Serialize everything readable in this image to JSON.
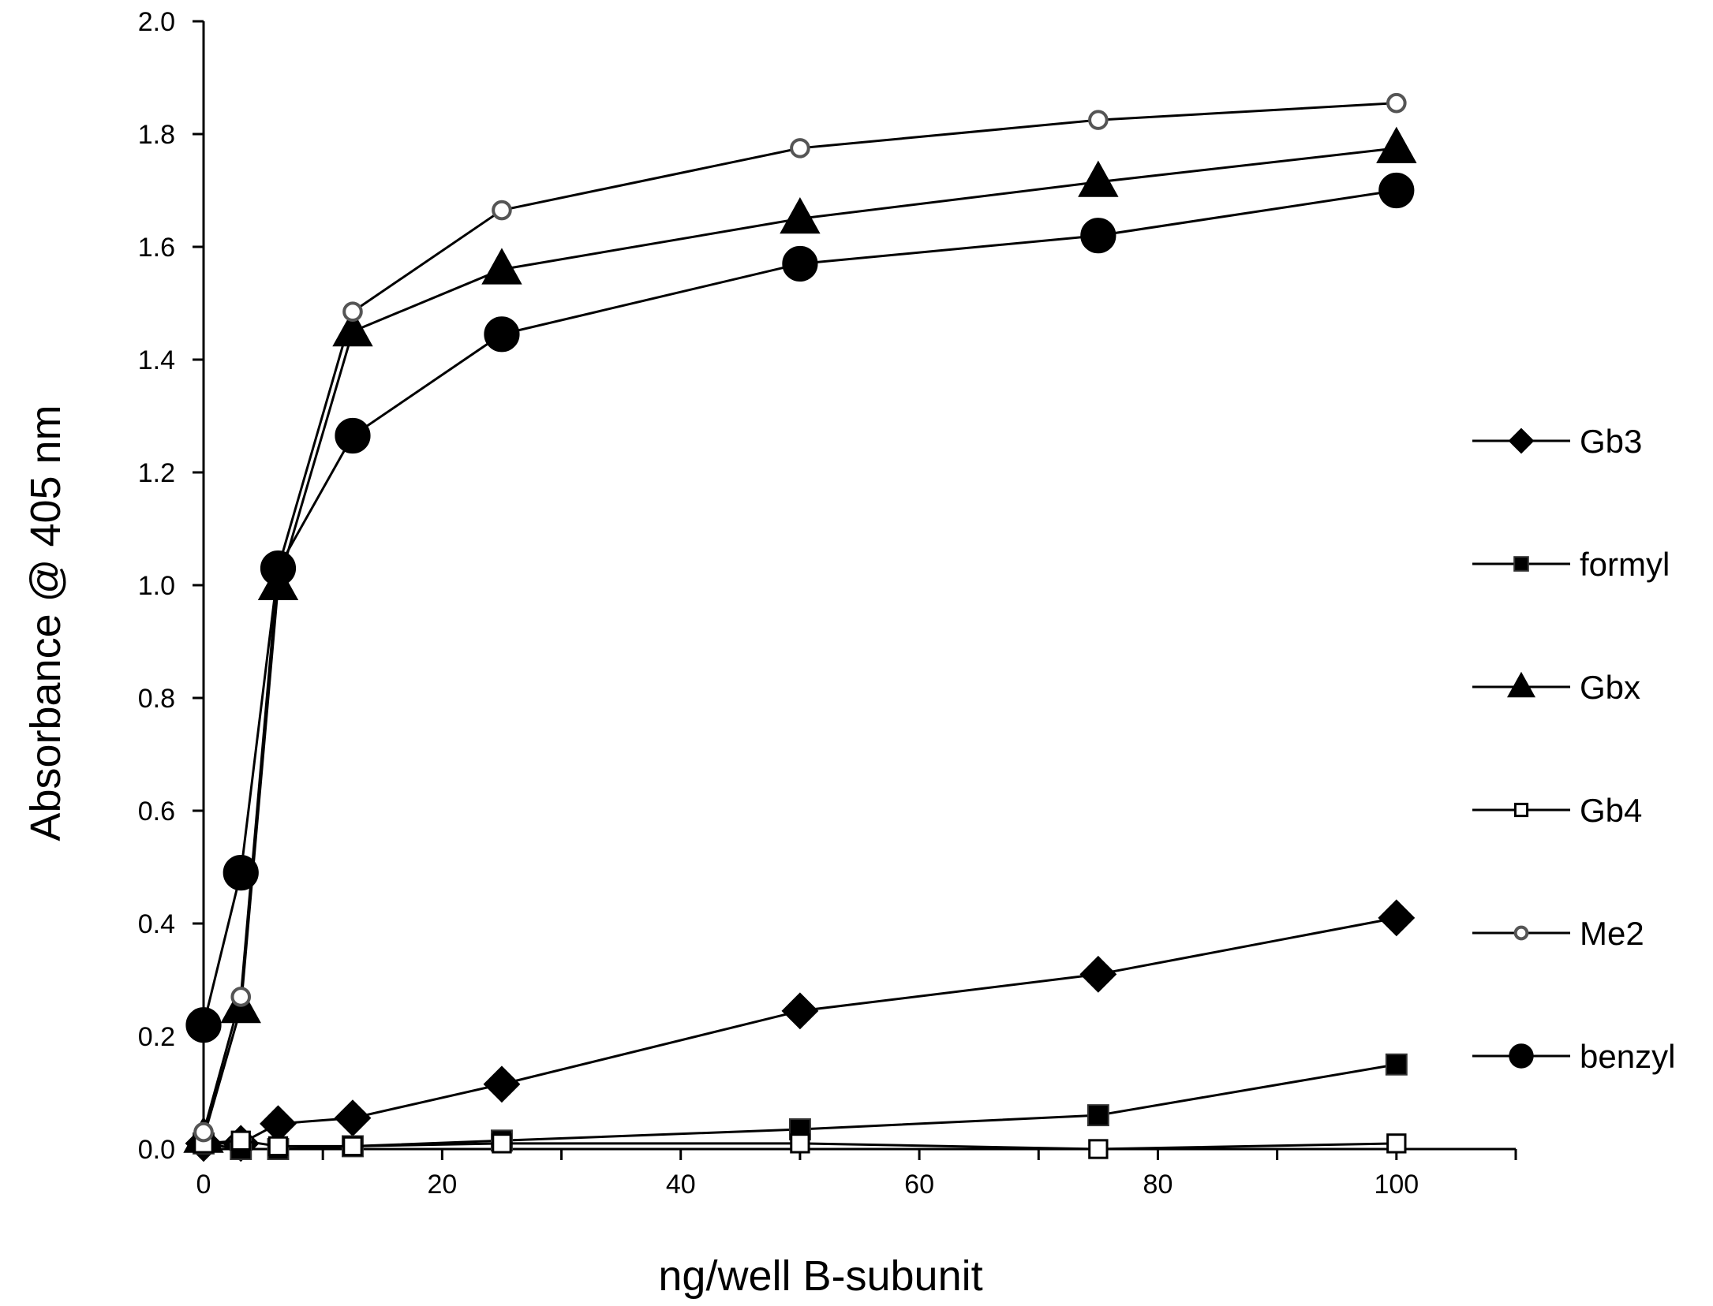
{
  "chart_data": {
    "type": "line",
    "xlabel": "ng/well B-subunit",
    "ylabel": "Absorbance @ 405 nm",
    "xlim": [
      0,
      110
    ],
    "ylim": [
      0,
      2.0
    ],
    "x_ticks": [
      0,
      20,
      40,
      60,
      80,
      100
    ],
    "x_tick_labels": [
      "0",
      "20",
      "40",
      "60",
      "80",
      "100"
    ],
    "y_ticks": [
      0,
      0.2,
      0.4,
      0.6,
      0.8,
      1.0,
      1.2,
      1.4,
      1.6,
      1.8,
      2.0
    ],
    "y_tick_labels": [
      "0.0",
      "0.2",
      "0.4",
      "0.6",
      "0.8",
      "1.0",
      "1.2",
      "1.4",
      "1.6",
      "1.8",
      "2.0"
    ],
    "grid": false,
    "legend_position": "right",
    "x": [
      0,
      3.125,
      6.25,
      12.5,
      25,
      50,
      75,
      100
    ],
    "series": [
      {
        "name": "Gb3",
        "marker": "diamond",
        "color": "#000000",
        "values": [
          0.01,
          0.01,
          0.045,
          0.055,
          0.115,
          0.245,
          0.31,
          0.41
        ]
      },
      {
        "name": "formyl",
        "marker": "square",
        "color": "#000000",
        "values": [
          0.01,
          0.0,
          0.0,
          0.005,
          0.015,
          0.035,
          0.06,
          0.15
        ]
      },
      {
        "name": "Gbx",
        "marker": "triangle",
        "color": "#000000",
        "values": [
          0.02,
          0.25,
          1.0,
          1.45,
          1.56,
          1.65,
          1.715,
          1.775
        ]
      },
      {
        "name": "Gb4",
        "marker": "square-open",
        "color": "#000000",
        "values": [
          0.01,
          0.015,
          0.005,
          0.005,
          0.01,
          0.01,
          0.0,
          0.01
        ]
      },
      {
        "name": "Me2",
        "marker": "circle-open",
        "color": "#000000",
        "values": [
          0.03,
          0.27,
          1.03,
          1.485,
          1.665,
          1.775,
          1.825,
          1.855
        ]
      },
      {
        "name": "benzyl",
        "marker": "circle",
        "color": "#000000",
        "values": [
          0.22,
          0.49,
          1.03,
          1.265,
          1.445,
          1.57,
          1.62,
          1.7
        ]
      }
    ]
  }
}
